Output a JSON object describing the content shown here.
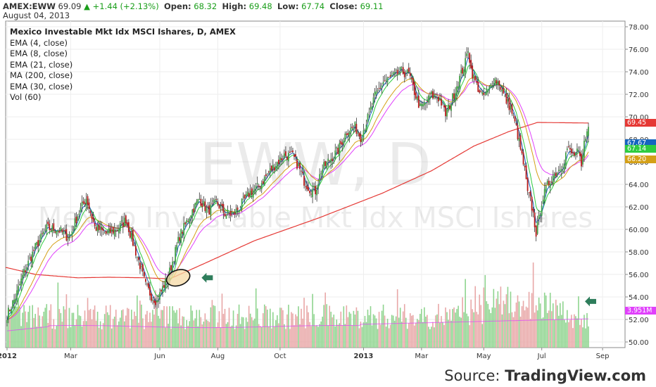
{
  "header": {
    "symbol": "AMEX:EWW",
    "last": "69.09",
    "change": "+1.44 (+2.13%)",
    "open_label": "Open:",
    "open": "68.32",
    "high_label": "High:",
    "high": "69.48",
    "low_label": "Low:",
    "low": "67.74",
    "close_label": "Close:",
    "close": "69.11",
    "date": "August 04, 2013"
  },
  "indicators": [
    "Mexico Investable Mkt Idx MSCI Ishares, D, AMEX",
    "EMA (4, close)",
    "EMA (8, close)",
    "EMA (21, close)",
    "MA (200, close)",
    "EMA (30, close)",
    "Vol (60)"
  ],
  "watermark": {
    "symbol": "EWW, D",
    "name": "Mexico Investable Mkt Idx MSCI Ishares"
  },
  "source": {
    "prefix": "Source:",
    "brand": "TradingView.com"
  },
  "colors": {
    "up_candle": "#43a047",
    "down_candle": "#b71c1c",
    "ema4": "#1565c0",
    "ema8": "#2ecc40",
    "ema21": "#d4a017",
    "ma200": "#e53935",
    "ema30": "#e040fb",
    "vol_up": "#8fd48f",
    "vol_down": "#e8a7a7",
    "annotation_arrow": "#2e7d5b",
    "highlight": "#f6d9a5"
  },
  "chart_data": {
    "type": "candlestick",
    "ylim": [
      49.5,
      78.5
    ],
    "yticks": [
      "78.00",
      "76.00",
      "74.00",
      "72.00",
      "70.00",
      "68.00",
      "66.00",
      "64.00",
      "62.00",
      "60.00",
      "58.00",
      "56.00",
      "54.00",
      "52.00",
      "50.00"
    ],
    "xticks": [
      "2012",
      "Mar",
      "Jun",
      "Aug",
      "Oct",
      "2013",
      "Mar",
      "May",
      "Jul",
      "Sep"
    ],
    "price_tags": [
      {
        "label": "69.45",
        "color": "#e53935",
        "value": 69.45
      },
      {
        "label": "67.67",
        "color": "#1565c0",
        "value": 67.67
      },
      {
        "label": "67.14",
        "color": "#2ecc40",
        "value": 67.14
      },
      {
        "label": "66.20",
        "color": "#d4a017",
        "value": 66.2
      },
      {
        "label": "3.951M",
        "color": "#e040fb",
        "value": 52.8
      }
    ],
    "close_anchors": [
      [
        0,
        52.4
      ],
      [
        6,
        54.0
      ],
      [
        12,
        56.2
      ],
      [
        20,
        58.4
      ],
      [
        28,
        60.1
      ],
      [
        36,
        60.0
      ],
      [
        44,
        59.2
      ],
      [
        50,
        61.3
      ],
      [
        56,
        62.8
      ],
      [
        62,
        60.2
      ],
      [
        70,
        59.6
      ],
      [
        78,
        60.0
      ],
      [
        84,
        60.9
      ],
      [
        90,
        58.4
      ],
      [
        94,
        56.8
      ],
      [
        98,
        55.0
      ],
      [
        102,
        54.1
      ],
      [
        106,
        53.6
      ],
      [
        110,
        54.8
      ],
      [
        114,
        55.8
      ],
      [
        118,
        57.6
      ],
      [
        122,
        59.4
      ],
      [
        126,
        60.4
      ],
      [
        130,
        61.5
      ],
      [
        136,
        62.7
      ],
      [
        142,
        61.6
      ],
      [
        148,
        62.4
      ],
      [
        154,
        61.4
      ],
      [
        160,
        61.3
      ],
      [
        166,
        62.3
      ],
      [
        172,
        63.3
      ],
      [
        178,
        63.8
      ],
      [
        184,
        64.9
      ],
      [
        190,
        65.8
      ],
      [
        196,
        66.6
      ],
      [
        202,
        66.5
      ],
      [
        206,
        65.6
      ],
      [
        210,
        64.3
      ],
      [
        214,
        63.6
      ],
      [
        218,
        63.4
      ],
      [
        222,
        65.2
      ],
      [
        228,
        66.2
      ],
      [
        234,
        67.0
      ],
      [
        240,
        68.7
      ],
      [
        246,
        69.1
      ],
      [
        250,
        68.2
      ],
      [
        256,
        70.2
      ],
      [
        260,
        71.8
      ],
      [
        266,
        73.1
      ],
      [
        272,
        73.5
      ],
      [
        278,
        74.0
      ],
      [
        284,
        73.8
      ],
      [
        288,
        72.2
      ],
      [
        292,
        70.8
      ],
      [
        296,
        71.2
      ],
      [
        300,
        71.9
      ],
      [
        306,
        71.6
      ],
      [
        310,
        70.2
      ],
      [
        314,
        71.3
      ],
      [
        318,
        72.8
      ],
      [
        324,
        74.8
      ],
      [
        326,
        76.1
      ],
      [
        328,
        74.2
      ],
      [
        332,
        72.8
      ],
      [
        336,
        71.8
      ],
      [
        340,
        72.2
      ],
      [
        344,
        73.4
      ],
      [
        348,
        73.0
      ],
      [
        352,
        71.6
      ],
      [
        356,
        70.8
      ],
      [
        360,
        69.0
      ],
      [
        363,
        67.1
      ],
      [
        366,
        65.2
      ],
      [
        368,
        63.2
      ],
      [
        370,
        62.6
      ],
      [
        372,
        61.3
      ],
      [
        374,
        59.7
      ],
      [
        376,
        60.9
      ],
      [
        378,
        62.5
      ],
      [
        382,
        63.9
      ],
      [
        386,
        64.8
      ],
      [
        390,
        65.3
      ],
      [
        394,
        66.2
      ],
      [
        396,
        67.2
      ],
      [
        400,
        66.6
      ],
      [
        404,
        66.8
      ],
      [
        406,
        65.4
      ],
      [
        408,
        67.6
      ],
      [
        410,
        69.1
      ]
    ],
    "ma200_anchors": [
      [
        0,
        56.6
      ],
      [
        20,
        56.0
      ],
      [
        50,
        55.7
      ],
      [
        72,
        55.75
      ],
      [
        98,
        55.7
      ],
      [
        115,
        55.6
      ],
      [
        140,
        57.0
      ],
      [
        175,
        59.0
      ],
      [
        220,
        61.0
      ],
      [
        265,
        63.2
      ],
      [
        300,
        65.2
      ],
      [
        330,
        67.4
      ],
      [
        355,
        68.7
      ],
      [
        375,
        69.5
      ],
      [
        410,
        69.45
      ]
    ],
    "volume_max_million": 12.0,
    "volume_ma_million": 3.951,
    "annotations": [
      {
        "type": "ellipse",
        "at_index": 121,
        "at_value": 55.7
      },
      {
        "type": "arrow",
        "at_index": 141,
        "at_value": 55.7
      },
      {
        "type": "arrow",
        "at_index": 412,
        "at_value": 53.6
      }
    ]
  }
}
